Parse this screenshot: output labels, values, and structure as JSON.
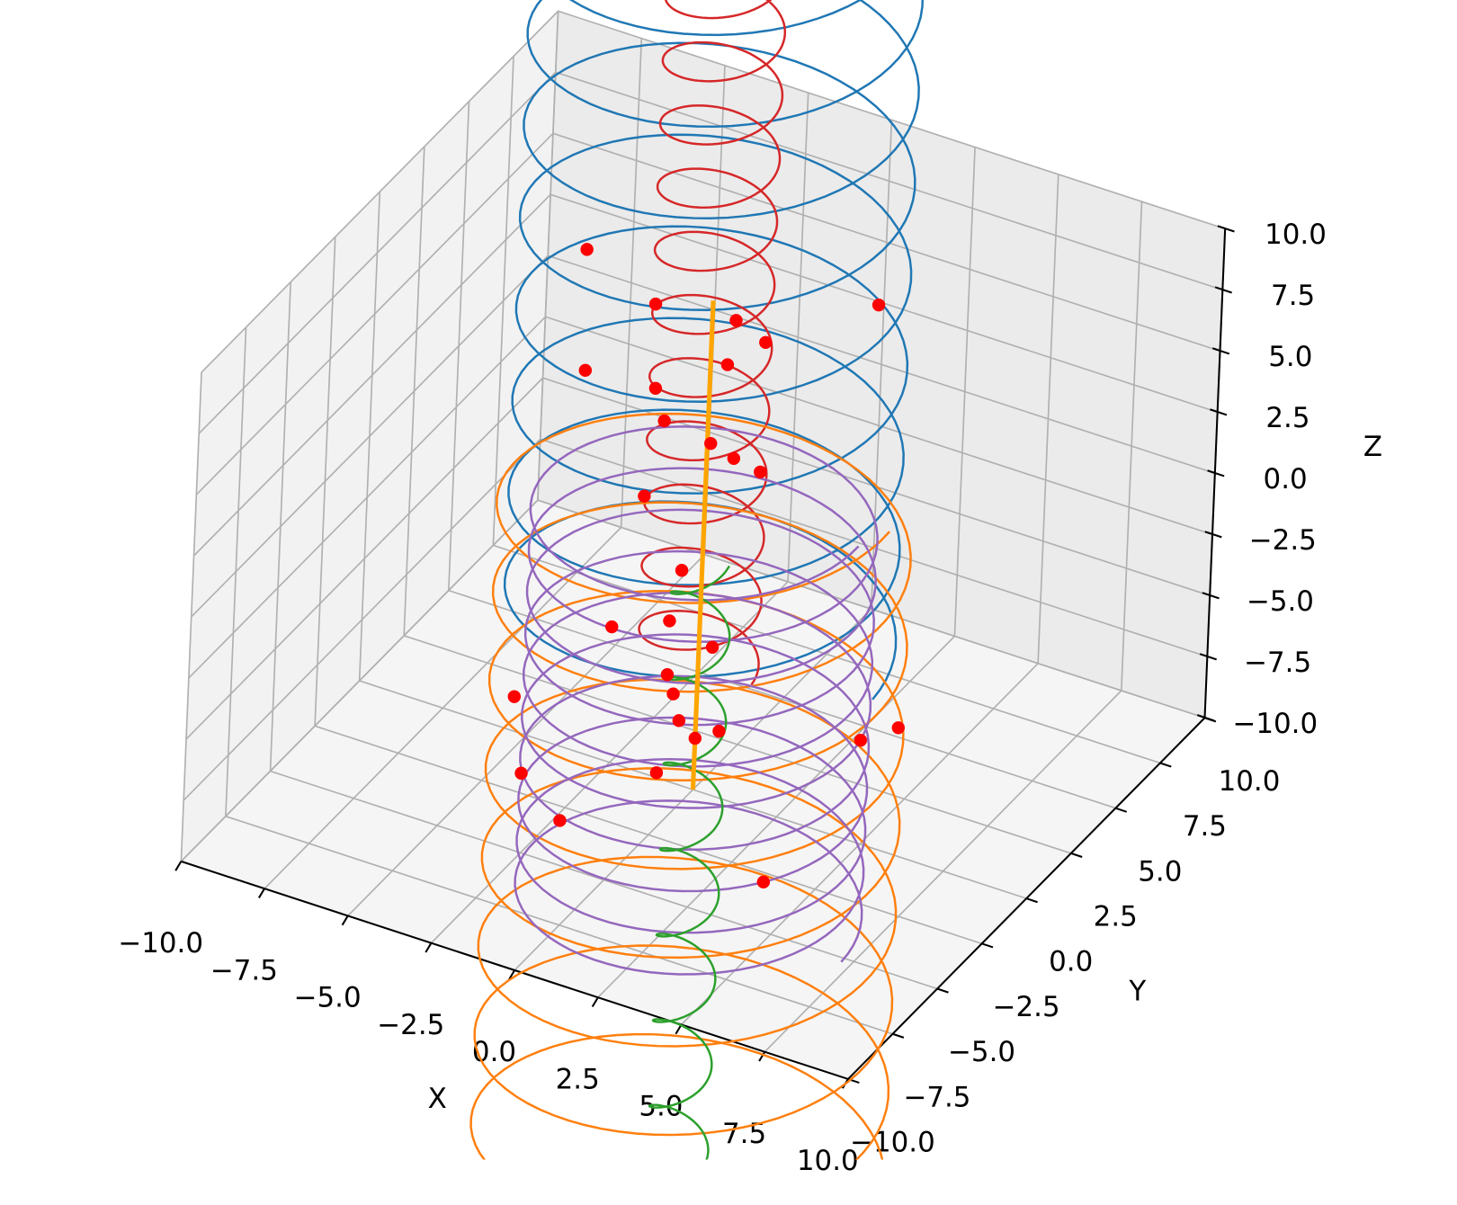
{
  "chart_data": {
    "type": "line3d",
    "xlabel": "X",
    "ylabel": "Y",
    "zlabel": "Z",
    "xlim": [
      -10,
      10
    ],
    "ylim": [
      -10,
      10
    ],
    "zlim": [
      -10,
      10
    ],
    "xticks": [
      {
        "value": -10,
        "label": "−10.0"
      },
      {
        "value": -7.5,
        "label": "−7.5"
      },
      {
        "value": -5,
        "label": "−5.0"
      },
      {
        "value": -2.5,
        "label": "−2.5"
      },
      {
        "value": 0,
        "label": "0.0"
      },
      {
        "value": 2.5,
        "label": "2.5"
      },
      {
        "value": 5,
        "label": "5.0"
      },
      {
        "value": 7.5,
        "label": "7.5"
      },
      {
        "value": 10,
        "label": "10.0"
      }
    ],
    "yticks": [
      {
        "value": -10,
        "label": "−10.0"
      },
      {
        "value": -7.5,
        "label": "−7.5"
      },
      {
        "value": -5,
        "label": "−5.0"
      },
      {
        "value": -2.5,
        "label": "−2.5"
      },
      {
        "value": 0,
        "label": "0.0"
      },
      {
        "value": 2.5,
        "label": "2.5"
      },
      {
        "value": 5,
        "label": "5.0"
      },
      {
        "value": 7.5,
        "label": "7.5"
      },
      {
        "value": 10,
        "label": "10.0"
      }
    ],
    "zticks": [
      {
        "value": -10,
        "label": "−10.0"
      },
      {
        "value": -7.5,
        "label": "−7.5"
      },
      {
        "value": -5,
        "label": "−5.0"
      },
      {
        "value": -2.5,
        "label": "−2.5"
      },
      {
        "value": 0,
        "label": "0.0"
      },
      {
        "value": 2.5,
        "label": "2.5"
      },
      {
        "value": 5,
        "label": "5.0"
      },
      {
        "value": 7.5,
        "label": "7.5"
      },
      {
        "value": 10,
        "label": "10.0"
      }
    ],
    "grid": true,
    "helices": [
      {
        "color": "#1f77b4",
        "center": [
          0,
          0
        ],
        "radius": 5.2,
        "z_range": [
          -4,
          26
        ],
        "turns": 8
      },
      {
        "color": "#d62728",
        "center": [
          0,
          0
        ],
        "radius": 1.6,
        "z_range": [
          -5,
          26
        ],
        "turns": 12
      },
      {
        "color": "#ff7f0e",
        "center": [
          0,
          0
        ],
        "radius": 5.5,
        "z_range": [
          -26,
          3
        ],
        "turns": 8
      },
      {
        "color": "#9467bd",
        "center": [
          0,
          0
        ],
        "radius": 4.6,
        "z_range": [
          -15,
          2
        ],
        "turns": 10
      },
      {
        "color": "#2ca02c",
        "center": [
          0,
          0
        ],
        "radius": 0.8,
        "z_range": [
          -25,
          -0.5
        ],
        "turns": 7
      }
    ],
    "line": {
      "color": "#ffa500",
      "x": [
        0,
        0
      ],
      "y": [
        0,
        0
      ],
      "z": [
        -10,
        10
      ]
    },
    "scatter": {
      "color": "#ff0000",
      "x": [
        -3.8,
        -1.7,
        4.9,
        0.7,
        1.6,
        -3.7,
        0.5,
        -1.6,
        -1.3,
        0.1,
        0.8,
        1.6,
        -1.8,
        -0.6,
        -2.6,
        -0.9,
        0.4,
        -0.9,
        -0.7,
        -5.4,
        -0.5,
        0.7,
        0,
        6.0,
        4.9,
        -5.1,
        -1.1,
        -3.9,
        2.2
      ],
      "y": [
        0,
        0,
        0,
        0,
        0,
        0,
        0,
        0,
        0,
        0,
        0,
        0,
        0,
        0,
        0,
        0,
        0,
        0,
        0,
        0,
        0,
        0,
        0,
        0,
        0,
        0,
        0,
        0,
        0
      ],
      "z": [
        10.4,
        9.1,
        12.0,
        9.5,
        9.0,
        5.5,
        7.6,
        5.7,
        4.5,
        4.2,
        3.9,
        3.7,
        1.2,
        -1.3,
        -4.5,
        -3.5,
        -4.0,
        -5.7,
        -6.4,
        -8.6,
        -7.4,
        -7.3,
        -7.9,
        -4.8,
        -5.8,
        -11.6,
        -9.8,
        -13.0,
        -12.8
      ]
    }
  }
}
